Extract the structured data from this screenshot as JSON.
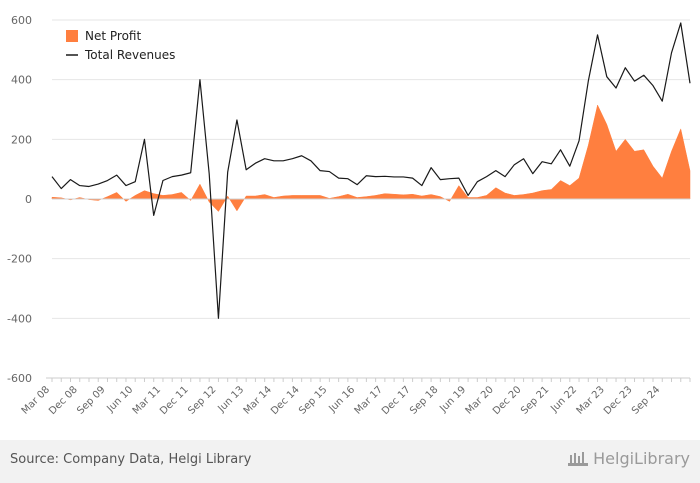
{
  "chart_data": {
    "type": "area",
    "legend": {
      "placement": "top-left"
    },
    "grid": true,
    "ylim": [
      -600,
      600
    ],
    "yticks": [
      600,
      400,
      200,
      0,
      -200,
      -400,
      -600
    ],
    "x_tick_labels": [
      "Mar 08",
      "Dec 08",
      "Sep 09",
      "Jun 10",
      "Mar 11",
      "Dec 11",
      "Sep 12",
      "Jun 13",
      "Mar 14",
      "Dec 14",
      "Sep 15",
      "Jun 16",
      "Mar 17",
      "Dec 17",
      "Sep 18",
      "Jun 19",
      "Mar 20",
      "Dec 20",
      "Sep 21",
      "Jun 22",
      "Mar 23",
      "Dec 23",
      "Sep 24"
    ],
    "series": [
      {
        "name": "Net Profit",
        "kind": "area",
        "color": "#ff7f3f",
        "values": [
          6,
          4,
          -3,
          5,
          -2,
          -5,
          8,
          22,
          -8,
          12,
          28,
          18,
          12,
          15,
          22,
          -5,
          50,
          -10,
          -42,
          10,
          -40,
          10,
          10,
          15,
          5,
          10,
          12,
          12,
          12,
          12,
          2,
          8,
          16,
          5,
          8,
          12,
          18,
          16,
          14,
          16,
          10,
          15,
          8,
          -8,
          45,
          5,
          5,
          12,
          38,
          20,
          12,
          15,
          20,
          28,
          32,
          62,
          45,
          70,
          180,
          315,
          250,
          160,
          200,
          160,
          165,
          110,
          70,
          160,
          235,
          95
        ]
      },
      {
        "name": "Total Revenues",
        "kind": "line",
        "color": "#1a1a1a",
        "values": [
          75,
          35,
          65,
          45,
          42,
          50,
          62,
          80,
          45,
          58,
          200,
          -55,
          62,
          75,
          80,
          88,
          400,
          85,
          -400,
          90,
          265,
          98,
          120,
          135,
          128,
          128,
          135,
          145,
          128,
          95,
          92,
          70,
          68,
          48,
          78,
          75,
          76,
          74,
          74,
          70,
          45,
          105,
          65,
          68,
          70,
          12,
          58,
          75,
          95,
          75,
          115,
          135,
          85,
          125,
          118,
          165,
          110,
          195,
          395,
          550,
          410,
          372,
          440,
          395,
          415,
          380,
          328,
          490,
          590,
          388
        ]
      }
    ]
  },
  "footer": {
    "source": "Source: Company Data, Helgi Library",
    "brand": "HelgiLibrary"
  },
  "colors": {
    "net_profit": "#ff7f3f",
    "total_revenues": "#1a1a1a",
    "grid": "#e6e6e6",
    "footer_bg": "#f2f2f2"
  }
}
